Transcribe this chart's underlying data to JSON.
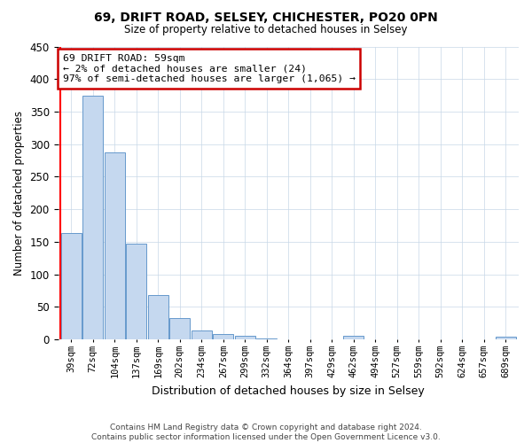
{
  "title_line1": "69, DRIFT ROAD, SELSEY, CHICHESTER, PO20 0PN",
  "title_line2": "Size of property relative to detached houses in Selsey",
  "xlabel": "Distribution of detached houses by size in Selsey",
  "ylabel": "Number of detached properties",
  "footer_line1": "Contains HM Land Registry data © Crown copyright and database right 2024.",
  "footer_line2": "Contains public sector information licensed under the Open Government Licence v3.0.",
  "bins": [
    "39sqm",
    "72sqm",
    "104sqm",
    "137sqm",
    "169sqm",
    "202sqm",
    "234sqm",
    "267sqm",
    "299sqm",
    "332sqm",
    "364sqm",
    "397sqm",
    "429sqm",
    "462sqm",
    "494sqm",
    "527sqm",
    "559sqm",
    "592sqm",
    "624sqm",
    "657sqm",
    "689sqm"
  ],
  "bar_values": [
    163,
    375,
    288,
    147,
    68,
    33,
    14,
    8,
    6,
    2,
    0,
    0,
    0,
    5,
    0,
    0,
    0,
    0,
    0,
    0,
    4
  ],
  "bar_color": "#c5d8ef",
  "bar_edge_color": "#6699cc",
  "ylim": [
    0,
    450
  ],
  "yticks": [
    0,
    50,
    100,
    150,
    200,
    250,
    300,
    350,
    400,
    450
  ],
  "red_line_x": -0.5,
  "annotation_text_line1": "69 DRIFT ROAD: 59sqm",
  "annotation_text_line2": "← 2% of detached houses are smaller (24)",
  "annotation_text_line3": "97% of semi-detached houses are larger (1,065) →",
  "annotation_box_color": "#ffffff",
  "annotation_box_edge_color": "#cc0000",
  "background_color": "#ffffff",
  "grid_color": "#c8d8e8"
}
